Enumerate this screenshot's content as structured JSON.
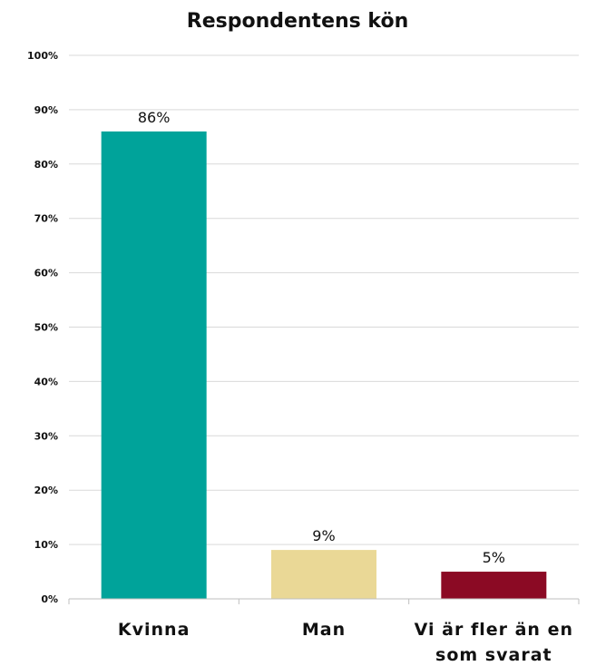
{
  "chart_data": {
    "type": "bar",
    "title": "Respondentens kön",
    "categories": [
      "Kvinna",
      "Man",
      "Vi är fler än en som svarat"
    ],
    "category_lines": [
      [
        "Kvinna"
      ],
      [
        "Man"
      ],
      [
        "Vi är fler än en",
        "som svarat"
      ]
    ],
    "values": [
      86,
      9,
      5
    ],
    "data_labels": [
      "86%",
      "9%",
      "5%"
    ],
    "colors": [
      "#00a39a",
      "#ead896",
      "#8b0a24"
    ],
    "ylim": [
      0,
      100
    ],
    "yticks": [
      0,
      10,
      20,
      30,
      40,
      50,
      60,
      70,
      80,
      90,
      100
    ],
    "ytick_labels": [
      "0%",
      "10%",
      "20%",
      "30%",
      "40%",
      "50%",
      "60%",
      "70%",
      "80%",
      "90%",
      "100%"
    ],
    "grid": true,
    "xlabel": "",
    "ylabel": ""
  }
}
